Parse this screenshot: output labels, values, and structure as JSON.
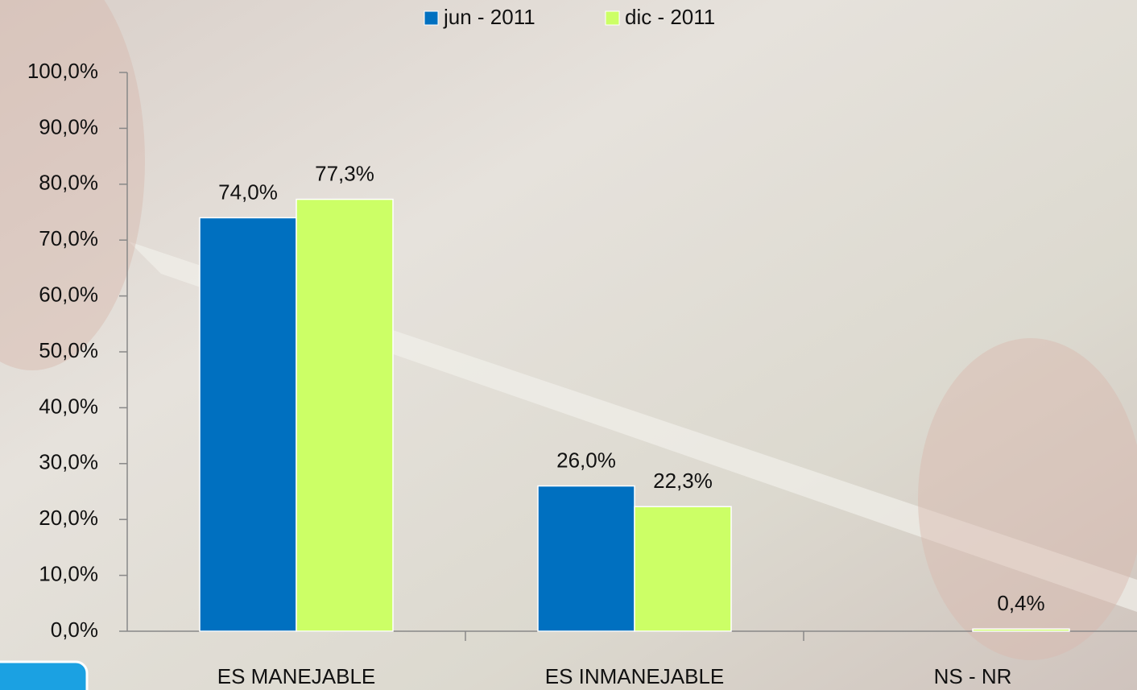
{
  "chart_data": {
    "type": "bar",
    "categories": [
      "ES MANEJABLE",
      "ES INMANEJABLE",
      "NS - NR"
    ],
    "series": [
      {
        "name": "jun - 2011",
        "color": "#0070c0",
        "values": [
          74.0,
          26.0,
          null
        ],
        "value_labels": [
          "74,0%",
          "26,0%",
          null
        ]
      },
      {
        "name": "dic - 2011",
        "color": "#ccff66",
        "values": [
          77.3,
          22.3,
          0.4
        ],
        "value_labels": [
          "77,3%",
          "22,3%",
          "0,4%"
        ]
      }
    ],
    "ylim": [
      0,
      100
    ],
    "yticks": [
      {
        "value": 0,
        "label": "0,0%"
      },
      {
        "value": 10,
        "label": "10,0%"
      },
      {
        "value": 20,
        "label": "20,0%"
      },
      {
        "value": 30,
        "label": "30,0%"
      },
      {
        "value": 40,
        "label": "40,0%"
      },
      {
        "value": 50,
        "label": "50,0%"
      },
      {
        "value": 60,
        "label": "60,0%"
      },
      {
        "value": 70,
        "label": "70,0%"
      },
      {
        "value": 80,
        "label": "80,0%"
      },
      {
        "value": 90,
        "label": "90,0%"
      },
      {
        "value": 100,
        "label": "100,0%"
      }
    ],
    "legend": "top"
  }
}
